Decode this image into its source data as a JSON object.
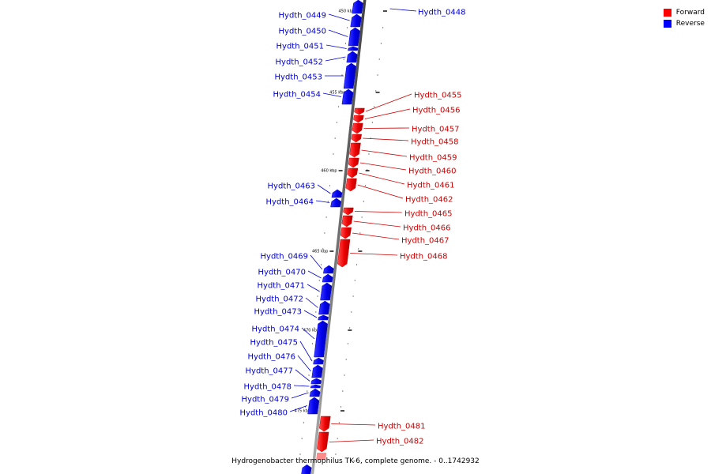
{
  "caption": "Hydrogenobacter thermophilus TK-6, complete genome. - 0..1742932",
  "legend": {
    "forward_label": "Forward",
    "reverse_label": "Reverse",
    "forward_color": "#ff0000",
    "reverse_color": "#0000ff"
  },
  "backbone_color": "#808080",
  "label_color_forward": "#cc0000",
  "label_color_reverse": "#0000cc",
  "ticks": [
    {
      "label": "450 kbp",
      "kbp": 450
    },
    {
      "label": "455 kbp",
      "kbp": 455
    },
    {
      "label": "460 kbp",
      "kbp": 460
    },
    {
      "label": "465 kbp",
      "kbp": 465
    },
    {
      "label": "470 kbp",
      "kbp": 470
    },
    {
      "label": "475 kbp",
      "kbp": 475
    }
  ],
  "genes": [
    {
      "name": "Hydth_0448",
      "strand": "reverse"
    },
    {
      "name": "Hydth_0449",
      "strand": "reverse"
    },
    {
      "name": "Hydth_0450",
      "strand": "reverse"
    },
    {
      "name": "Hydth_0451",
      "strand": "reverse"
    },
    {
      "name": "Hydth_0452",
      "strand": "reverse"
    },
    {
      "name": "Hydth_0453",
      "strand": "reverse"
    },
    {
      "name": "Hydth_0454",
      "strand": "reverse"
    },
    {
      "name": "Hydth_0455",
      "strand": "forward"
    },
    {
      "name": "Hydth_0456",
      "strand": "forward"
    },
    {
      "name": "Hydth_0457",
      "strand": "forward"
    },
    {
      "name": "Hydth_0458",
      "strand": "forward"
    },
    {
      "name": "Hydth_0459",
      "strand": "forward"
    },
    {
      "name": "Hydth_0460",
      "strand": "forward"
    },
    {
      "name": "Hydth_0461",
      "strand": "forward"
    },
    {
      "name": "Hydth_0462",
      "strand": "forward"
    },
    {
      "name": "Hydth_0463",
      "strand": "reverse"
    },
    {
      "name": "Hydth_0464",
      "strand": "reverse"
    },
    {
      "name": "Hydth_0465",
      "strand": "forward"
    },
    {
      "name": "Hydth_0466",
      "strand": "forward"
    },
    {
      "name": "Hydth_0467",
      "strand": "forward"
    },
    {
      "name": "Hydth_0468",
      "strand": "forward"
    },
    {
      "name": "Hydth_0469",
      "strand": "reverse"
    },
    {
      "name": "Hydth_0470",
      "strand": "reverse"
    },
    {
      "name": "Hydth_0471",
      "strand": "reverse"
    },
    {
      "name": "Hydth_0472",
      "strand": "reverse"
    },
    {
      "name": "Hydth_0473",
      "strand": "reverse"
    },
    {
      "name": "Hydth_0474",
      "strand": "reverse"
    },
    {
      "name": "Hydth_0475",
      "strand": "reverse"
    },
    {
      "name": "Hydth_0476",
      "strand": "reverse"
    },
    {
      "name": "Hydth_0477",
      "strand": "reverse"
    },
    {
      "name": "Hydth_0478",
      "strand": "reverse"
    },
    {
      "name": "Hydth_0479",
      "strand": "reverse"
    },
    {
      "name": "Hydth_0480",
      "strand": "reverse"
    },
    {
      "name": "Hydth_0481",
      "strand": "forward"
    },
    {
      "name": "Hydth_0482",
      "strand": "forward"
    }
  ]
}
